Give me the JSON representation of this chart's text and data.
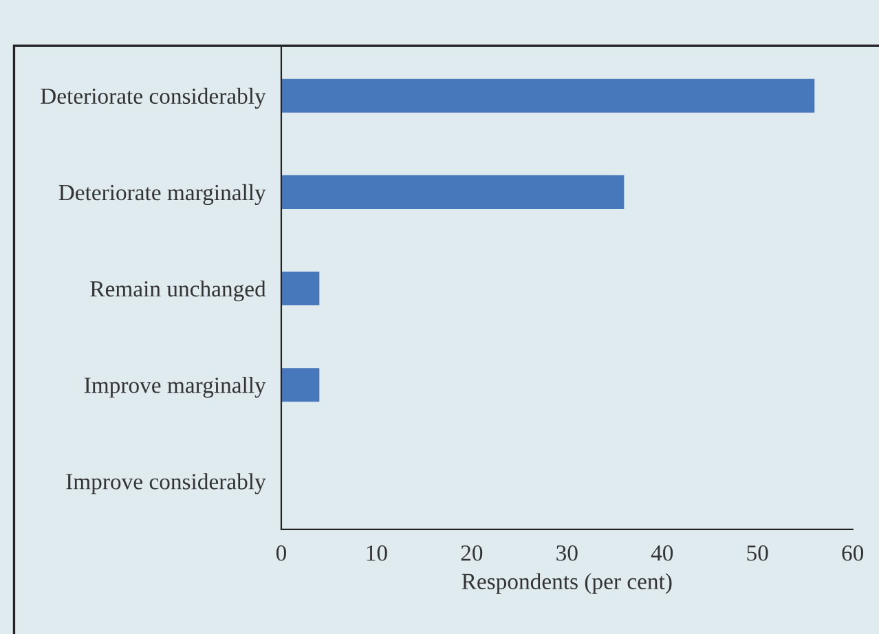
{
  "chart_data": {
    "type": "bar",
    "orientation": "horizontal",
    "categories": [
      "Deteriorate considerably",
      "Deteriorate marginally",
      "Remain unchanged",
      "Improve marginally",
      "Improve considerably"
    ],
    "values": [
      56,
      36,
      4,
      4,
      0
    ],
    "color": "#4878bc",
    "xlabel": "Respondents (per cent)",
    "xlim": [
      0,
      60
    ],
    "xticks": [
      0,
      10,
      20,
      30,
      40,
      50,
      60
    ],
    "grid": false,
    "legend": false
  }
}
